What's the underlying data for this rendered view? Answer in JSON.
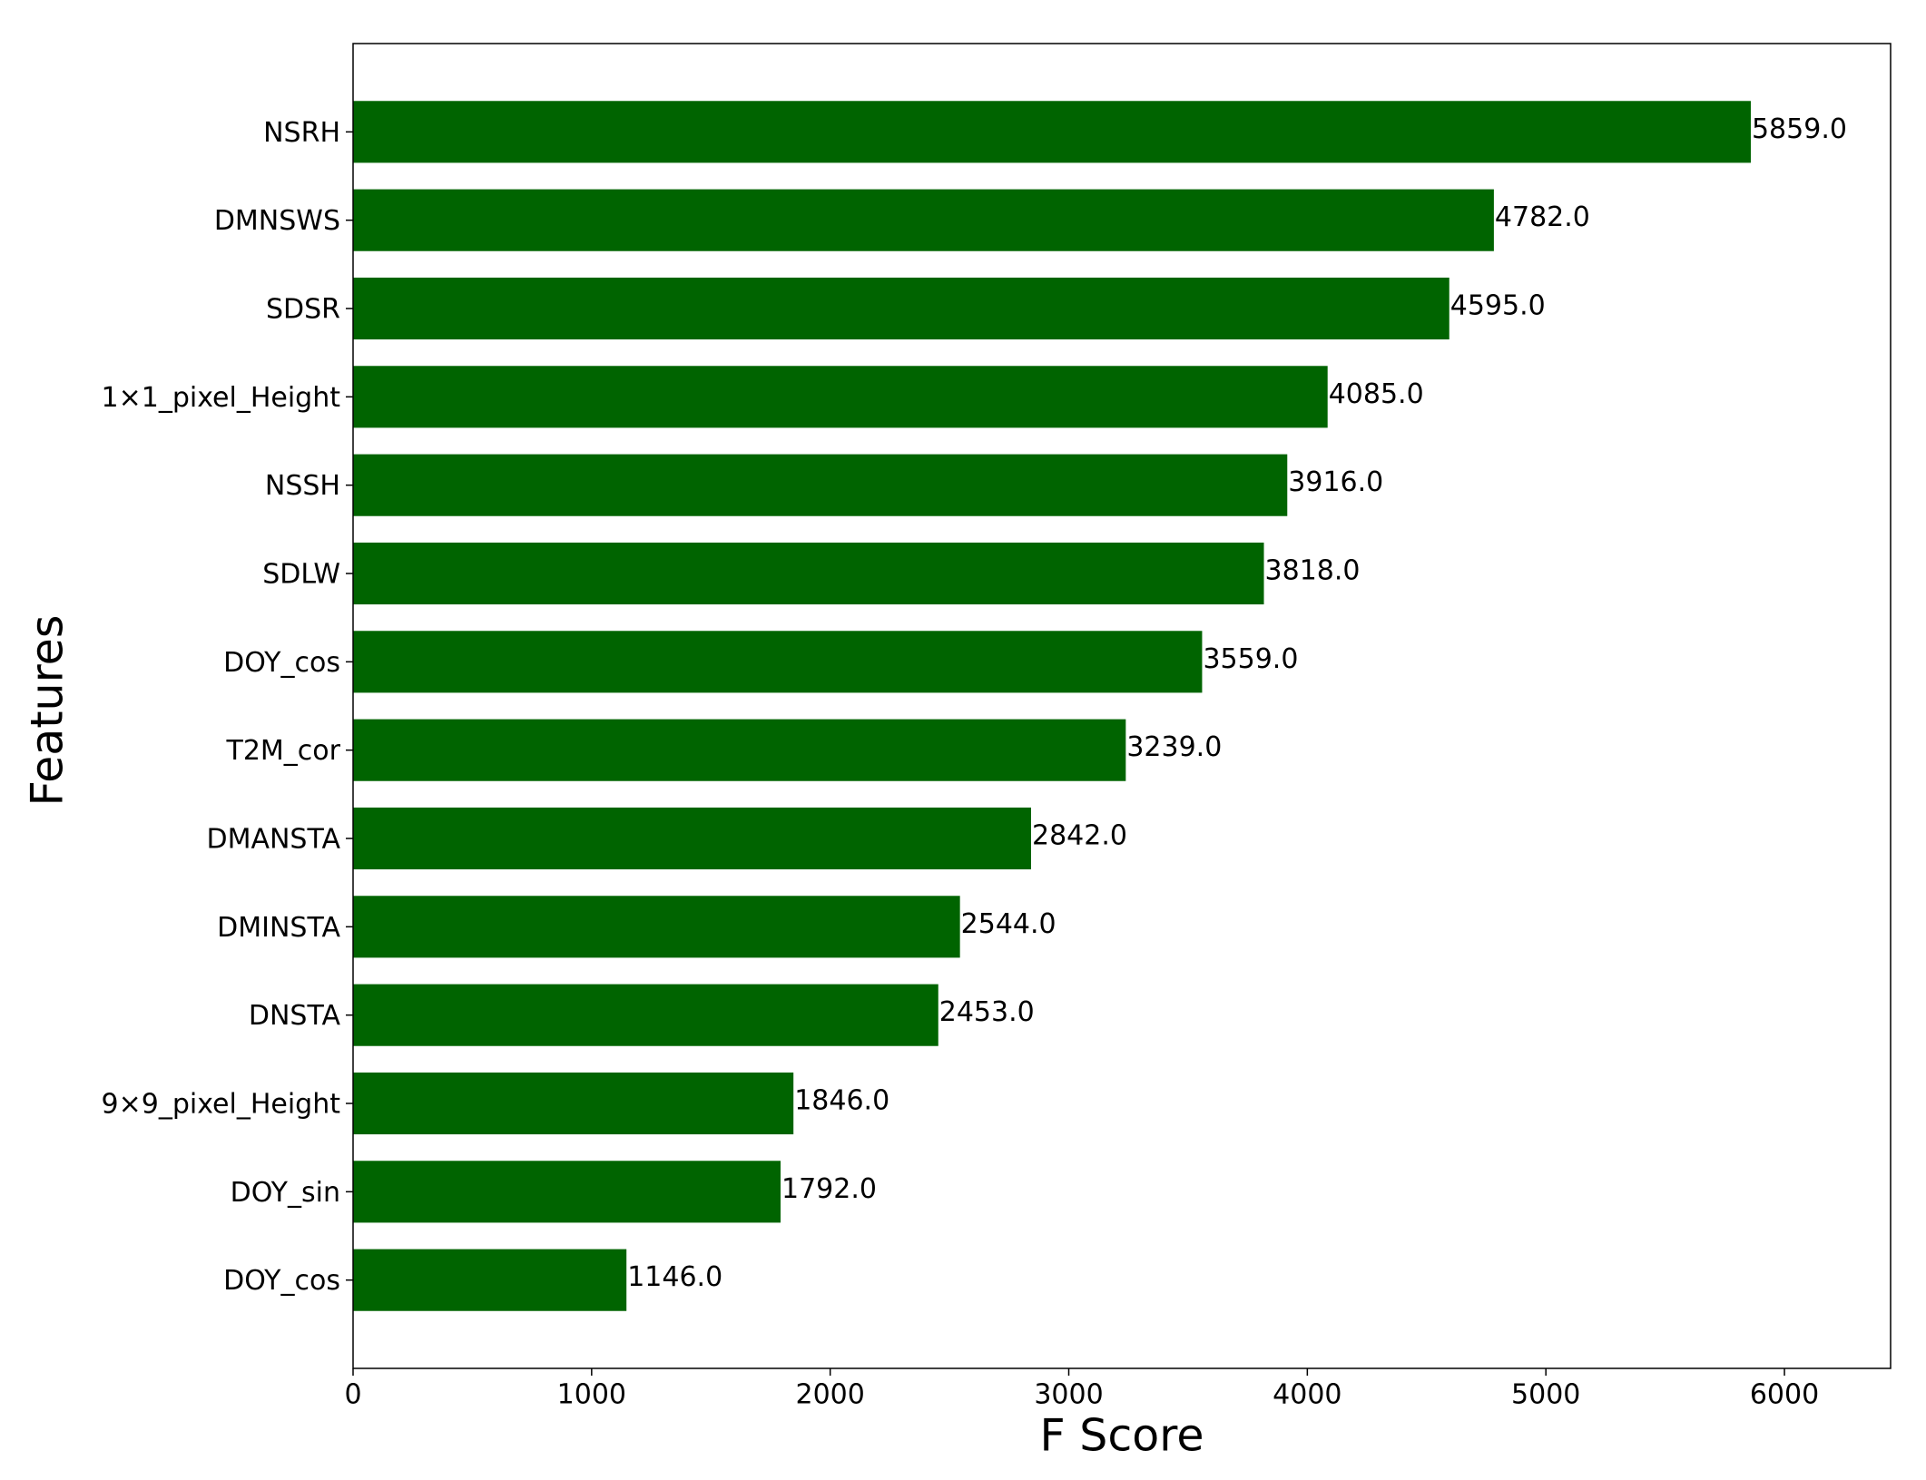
{
  "chart_data": {
    "type": "bar",
    "orientation": "horizontal",
    "xlabel": "F Score",
    "ylabel": "Features",
    "categories": [
      "NSRH",
      "DMNSWS",
      "SDSR",
      "1×1_pixel_Height",
      "NSSH",
      "SDLW",
      "DOY_cos",
      "T2M_cor",
      "DMANSTA",
      "DMINSTA",
      "DNSTA",
      "9×9_pixel_Height",
      "DOY_sin",
      "DOY_cos"
    ],
    "values": [
      5859,
      4782,
      4595,
      4085,
      3916,
      3818,
      3559,
      3239,
      2842,
      2544,
      2453,
      1846,
      1792,
      1146
    ],
    "value_labels": [
      "5859.0",
      "4782.0",
      "4595.0",
      "4085.0",
      "3916.0",
      "3818.0",
      "3559.0",
      "3239.0",
      "2842.0",
      "2544.0",
      "2453.0",
      "1846.0",
      "1792.0",
      "1146.0"
    ],
    "color": "#006400",
    "xlim": [
      0,
      6445
    ],
    "xticks": [
      0,
      1000,
      2000,
      3000,
      4000,
      5000,
      6000
    ],
    "grid": false
  }
}
